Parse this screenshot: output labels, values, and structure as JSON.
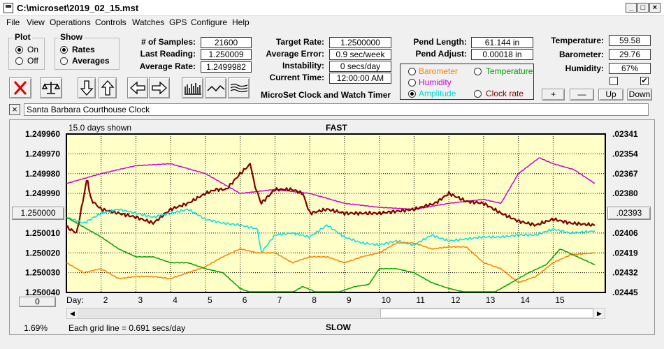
{
  "window": {
    "title": "C:\\microset\\2019_02_15.mst"
  },
  "menu": [
    "File",
    "View",
    "Operations",
    "Controls",
    "Watches",
    "GPS",
    "Configure",
    "Help"
  ],
  "plot_group": {
    "title": "Plot",
    "on": "On",
    "off": "Off",
    "selected": "On"
  },
  "show_group": {
    "title": "Show",
    "rates": "Rates",
    "averages": "Averages",
    "selected": "Rates"
  },
  "stats": {
    "samples_label": "# of Samples:",
    "samples": "21600",
    "last_label": "Last Reading:",
    "last": "1.250009",
    "avg_rate_label": "Average Rate:",
    "avg_rate": "1.2499982",
    "target_label": "Target Rate:",
    "target": "1.2500000",
    "avg_err_label": "Average Error:",
    "avg_err": "0.9 sec/week",
    "instab_label": "Instability:",
    "instab": "0 secs/day",
    "curtime_label": "Current Time:",
    "curtime": "12:00:00 AM",
    "pendlen_label": "Pend Length:",
    "pendlen": "61.144 in",
    "pendadj_label": "Pend Adjust:",
    "pendadj": "0.00018 in",
    "temp_label": "Temperature:",
    "temp": "59.58",
    "baro_label": "Barometer:",
    "baro": "29.76",
    "hum_label": "Humidity:",
    "hum": "67%"
  },
  "app_caption": "MicroSet Clock and Watch Timer",
  "sensors": {
    "barometer": "Barometer",
    "temperature": "Temperature",
    "humidity": "Humidity",
    "amplitude": "Amplitude",
    "clock_rate": "Clock rate",
    "selected": "Amplitude",
    "colors": {
      "barometer": "#ff8000",
      "temperature": "#00a000",
      "humidity": "#cc00cc",
      "amplitude": "#00e0e0",
      "clock_rate": "#800000"
    }
  },
  "adjust_buttons": {
    "plus": "+",
    "minus": "—",
    "up": "Up",
    "down": "Down"
  },
  "checkbox_right_checked": true,
  "toolbar_icons": [
    "stop-x-icon",
    "balance-scale-icon",
    "arrow-down-icon",
    "arrow-up-icon",
    "arrow-left-icon",
    "arrow-right-icon",
    "bar-graph-icon",
    "line-wave-icon",
    "multi-wave-icon"
  ],
  "watch_name": "Santa Barbara Courthouse Clock",
  "chart_header": {
    "days_shown": "15.0 days shown",
    "top": "FAST",
    "bottom": "SLOW"
  },
  "left_button": "1.250000",
  "right_button": ".02393",
  "zero_button": "0",
  "percent": "1.69%",
  "grid_note": "Each grid line = 0.691 secs/day",
  "day_label": "Day:",
  "chart_data": {
    "type": "line",
    "xlabel": "Day:",
    "xlim": [
      1,
      16.5
    ],
    "x_ticks": [
      2,
      3,
      4,
      5,
      6,
      7,
      8,
      9,
      10,
      11,
      12,
      13,
      14,
      15
    ],
    "y_left_ticks": [
      "1.249960",
      "1.249970",
      "1.249980",
      "1.249990",
      "1.250000",
      "1.250010",
      "1.250020",
      "1.250030",
      "1.250040"
    ],
    "y_left_lim": [
      1.25004,
      1.24996
    ],
    "y_right_ticks": [
      ".02341",
      ".02354",
      ".02367",
      ".02380",
      ".02393",
      ".02406",
      ".02419",
      ".02432",
      ".02445"
    ],
    "series": [
      {
        "key": "humidity",
        "color": "#cc00cc",
        "x": [
          1,
          2,
          3,
          4,
          5,
          5.5,
          6,
          7,
          8,
          9,
          10,
          11,
          12,
          13,
          13.5,
          14,
          14.6,
          15,
          15.6,
          16.2
        ],
        "y": [
          1.249985,
          1.24998,
          1.249976,
          1.249975,
          1.24998,
          1.249985,
          1.24999,
          1.249988,
          1.24999,
          1.249995,
          1.249997,
          1.249998,
          1.249995,
          1.249993,
          1.249995,
          1.24998,
          1.249972,
          1.249975,
          1.249978,
          1.249985
        ]
      },
      {
        "key": "clock_rate",
        "color": "#800000",
        "x": [
          1,
          1.3,
          1.6,
          1.7,
          2,
          2.5,
          3,
          3.5,
          4,
          4.5,
          5,
          5.3,
          5.6,
          6,
          6.3,
          6.4,
          6.6,
          7,
          7.5,
          7.8,
          8,
          8.5,
          9,
          10,
          11,
          11.6,
          12,
          12.5,
          13,
          13.5,
          14,
          14.5,
          15,
          15.5,
          16.2
        ],
        "y": [
          1.250007,
          1.25001,
          1.249982,
          1.249993,
          1.249998,
          1.25,
          1.250002,
          1.250005,
          1.249998,
          1.249995,
          1.24999,
          1.249988,
          1.249988,
          1.24998,
          1.249975,
          1.249985,
          1.249995,
          1.249988,
          1.249988,
          1.24999,
          1.25,
          1.249998,
          1.25,
          1.25,
          1.249998,
          1.249995,
          1.24999,
          1.249994,
          1.249995,
          1.25,
          1.250004,
          1.250006,
          1.250003,
          1.250005,
          1.250006
        ]
      },
      {
        "key": "amplitude",
        "color": "#00e0e0",
        "x": [
          1,
          1.5,
          2,
          2.5,
          3,
          3.5,
          4,
          4.5,
          5,
          5.5,
          6,
          6.5,
          6.6,
          7,
          7.5,
          8,
          8.5,
          9,
          9.5,
          10,
          10.5,
          11,
          11.5,
          12,
          12.5,
          13,
          13.5,
          14,
          14.5,
          15,
          15.5,
          16.2
        ],
        "y": [
          1.250002,
          1.250005,
          1.25,
          1.249998,
          1.25,
          1.250002,
          1.25,
          1.249998,
          1.250003,
          1.250005,
          1.250006,
          1.250008,
          1.25002,
          1.250011,
          1.25001,
          1.250012,
          1.250006,
          1.250012,
          1.250015,
          1.250016,
          1.250014,
          1.250016,
          1.250011,
          1.250014,
          1.250013,
          1.250012,
          1.250012,
          1.250011,
          1.250011,
          1.250008,
          1.25001,
          1.250009
        ]
      },
      {
        "key": "barometer",
        "color": "#ff8000",
        "x": [
          1,
          1.5,
          2,
          2.5,
          3,
          3.5,
          4,
          4.5,
          5,
          5.5,
          6,
          6.5,
          7,
          7.5,
          8,
          8.5,
          9,
          9.5,
          10,
          10.5,
          11,
          11.5,
          12,
          12.5,
          13,
          13.5,
          14,
          14.5,
          15,
          15.5,
          16.2
        ],
        "y": [
          1.250025,
          1.25003,
          1.250028,
          1.250033,
          1.250032,
          1.250032,
          1.250033,
          1.25003,
          1.250027,
          1.250022,
          1.250018,
          1.25002,
          1.25002,
          1.250025,
          1.250022,
          1.250022,
          1.250025,
          1.250022,
          1.25002,
          1.250015,
          1.250015,
          1.250018,
          1.250017,
          1.250017,
          1.250025,
          1.250028,
          1.250035,
          1.250032,
          1.250025,
          1.250021,
          1.25002
        ]
      },
      {
        "key": "temperature",
        "color": "#00a000",
        "x": [
          1,
          1.5,
          2,
          2.5,
          3,
          3.5,
          4,
          4.5,
          5,
          5.5,
          6,
          6.3,
          6.6,
          7,
          7.5,
          7.8,
          8.2,
          8.8,
          9.3,
          9.7,
          10,
          10.5,
          11,
          11.5,
          12,
          12.5,
          13,
          13.3,
          13.8,
          14.3,
          14.8,
          15.2,
          16.2
        ],
        "y": [
          1.250002,
          1.250007,
          1.250012,
          1.250018,
          1.250022,
          1.250022,
          1.250025,
          1.250025,
          1.250028,
          1.25003,
          1.250038,
          1.25004,
          1.25004,
          1.25004,
          1.25004,
          1.250037,
          1.25004,
          1.25004,
          1.250037,
          1.250036,
          1.250028,
          1.250028,
          1.25003,
          1.250035,
          1.250038,
          1.25004,
          1.25004,
          1.25004,
          1.250035,
          1.25003,
          1.250026,
          1.250018,
          1.250026
        ]
      }
    ]
  }
}
